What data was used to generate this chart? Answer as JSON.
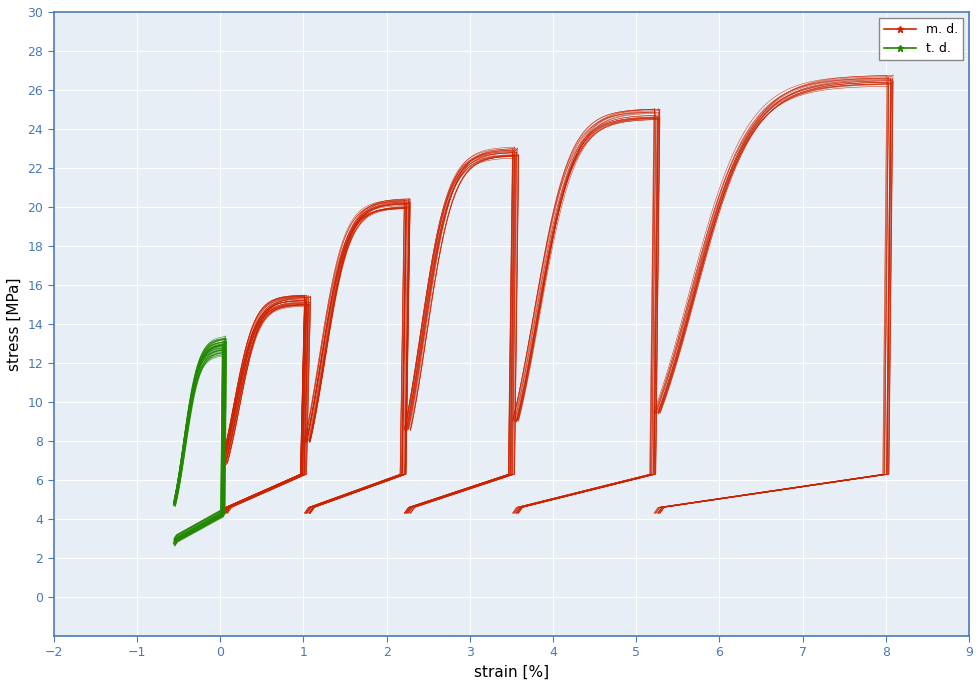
{
  "title": "",
  "xlabel": "strain [%]",
  "ylabel": "stress [MPa]",
  "xlim": [
    -2,
    9
  ],
  "ylim": [
    -2,
    30
  ],
  "xticks": [
    -2,
    -1,
    0,
    1,
    2,
    3,
    4,
    5,
    6,
    7,
    8,
    9
  ],
  "yticks": [
    0,
    2,
    4,
    6,
    8,
    10,
    12,
    14,
    16,
    18,
    20,
    22,
    24,
    26,
    28,
    30
  ],
  "red_color": "#cc2200",
  "green_color": "#228800",
  "background_color": "#e8eef5",
  "legend_labels": [
    "m. d.",
    "t. d."
  ],
  "figsize": [
    9.8,
    6.87
  ],
  "dpi": 100,
  "red_groups": [
    [
      0.05,
      1.05,
      4.3,
      15.2,
      35
    ],
    [
      1.05,
      2.25,
      4.3,
      20.2,
      28
    ],
    [
      2.25,
      3.55,
      4.3,
      22.8,
      22
    ],
    [
      3.55,
      5.25,
      4.3,
      24.8,
      20
    ],
    [
      5.25,
      8.05,
      4.3,
      26.5,
      18
    ]
  ],
  "green_cycles": 45,
  "green_xmin": -0.55,
  "green_xmax": 0.05,
  "green_ylo": 2.8,
  "green_yhi": 12.8
}
